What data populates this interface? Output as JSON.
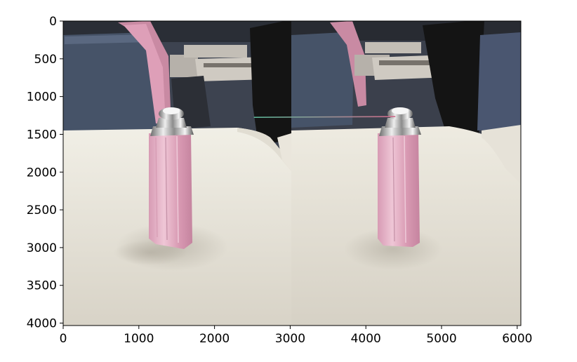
{
  "chart_data": {
    "type": "image",
    "title": "",
    "xlabel": "",
    "ylabel": "",
    "xlim": [
      0,
      6048
    ],
    "ylim": [
      4032,
      0
    ],
    "x_ticks": [
      0,
      1000,
      2000,
      3000,
      4000,
      5000,
      6000
    ],
    "y_ticks": [
      0,
      500,
      1000,
      1500,
      2000,
      2500,
      3000,
      3500,
      4000
    ],
    "x_tick_labels": [
      "0",
      "1000",
      "2000",
      "3000",
      "4000",
      "5000",
      "6000"
    ],
    "y_tick_labels": [
      "0",
      "500",
      "1000",
      "1500",
      "2000",
      "2500",
      "3000",
      "3500",
      "4000"
    ],
    "image_split_x": 3024,
    "match_line": {
      "x": [
        2520,
        4390
      ],
      "y": [
        1275,
        1265
      ],
      "colors": [
        "#5fbf9f",
        "#d06a8a"
      ]
    }
  }
}
